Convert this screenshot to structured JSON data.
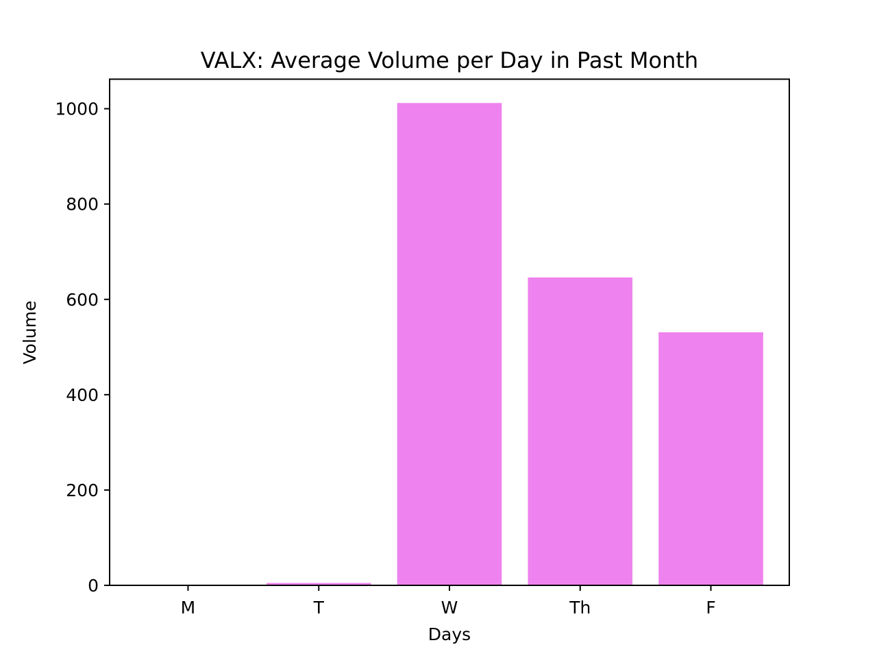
{
  "chart_data": {
    "type": "bar",
    "title": "VALX: Average Volume per Day in Past Month",
    "xlabel": "Days",
    "ylabel": "Volume",
    "categories": [
      "M",
      "T",
      "W",
      "Th",
      "F"
    ],
    "values": [
      0,
      5,
      1012,
      646,
      531
    ],
    "ylim": [
      0,
      1062
    ],
    "yticks": [
      0,
      200,
      400,
      600,
      800,
      1000
    ],
    "bar_color": "#ee82ee",
    "grid": false,
    "legend": "none"
  }
}
